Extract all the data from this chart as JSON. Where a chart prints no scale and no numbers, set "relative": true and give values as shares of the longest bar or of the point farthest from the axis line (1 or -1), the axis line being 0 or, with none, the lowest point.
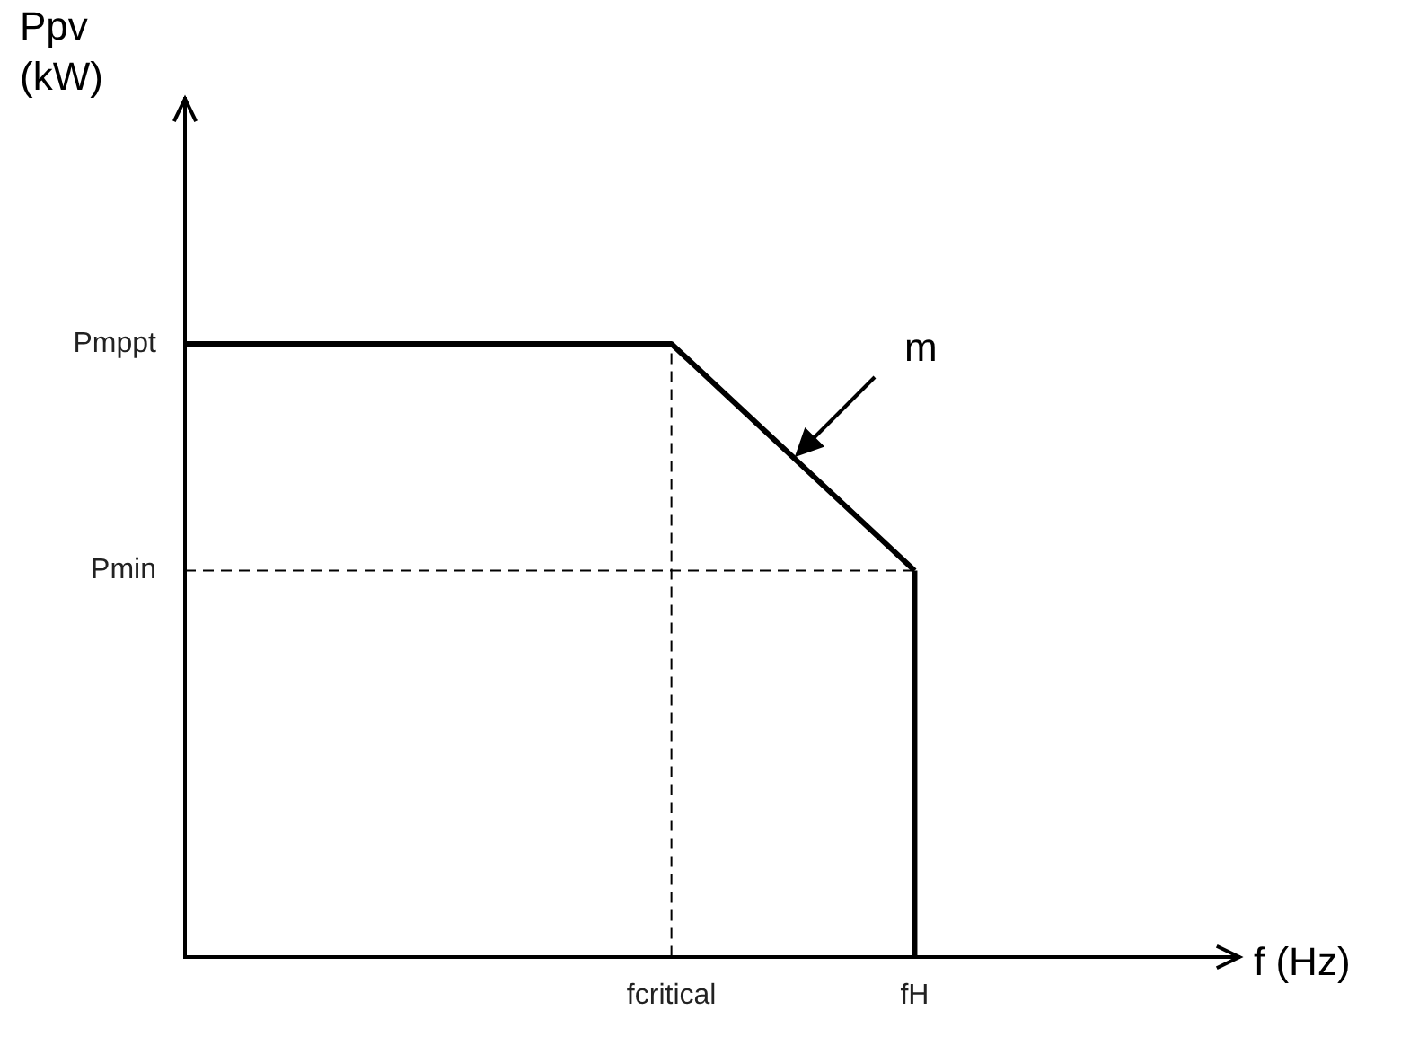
{
  "chart_data": {
    "type": "line",
    "relative": true,
    "categories": [
      null,
      null,
      null,
      null,
      "fcritical",
      null,
      "fH"
    ],
    "series": [
      {
        "color": "#000000",
        "values": [
          1,
          1,
          1,
          1,
          1,
          0.815,
          0.63
        ]
      }
    ],
    "ref_lines": [
      {
        "axis": "x",
        "value": "fcritical",
        "line_style": "dashed",
        "color": "#000000"
      },
      {
        "axis": "x",
        "value": "fH",
        "line_style": "solid",
        "color": "#000000"
      },
      {
        "axis": "y",
        "value": 0.63,
        "label": "Pmin",
        "line_style": "dashed",
        "color": "#000000"
      }
    ],
    "annotations": [
      "Pmppt",
      "m",
      "Ppv\n(kW)",
      "f (Hz)"
    ],
    "marker": "none",
    "line_style": "solid",
    "grid": false,
    "legend": false
  }
}
